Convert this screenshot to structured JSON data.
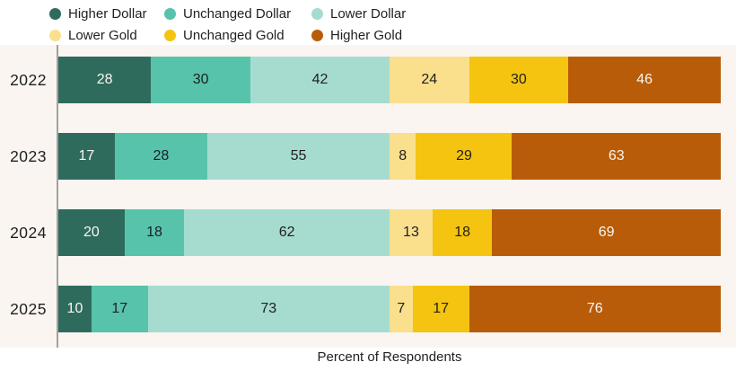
{
  "chart_data": {
    "type": "bar",
    "subtype": "horizontal-stacked",
    "categories": [
      "2022",
      "2023",
      "2024",
      "2025"
    ],
    "series": [
      {
        "name": "Higher Dollar",
        "color": "#2f6b5d",
        "label_color": "#faf6f0",
        "values": [
          28,
          17,
          20,
          10
        ]
      },
      {
        "name": "Unchanged Dollar",
        "color": "#57c3ab",
        "label_color": "#1f1f1f",
        "values": [
          30,
          28,
          18,
          17
        ]
      },
      {
        "name": "Lower Dollar",
        "color": "#a6dcd0",
        "label_color": "#1f1f1f",
        "values": [
          42,
          55,
          62,
          73
        ]
      },
      {
        "name": "Lower Gold",
        "color": "#fadf8d",
        "label_color": "#1f1f1f",
        "values": [
          24,
          8,
          13,
          7
        ]
      },
      {
        "name": "Unchanged Gold",
        "color": "#f4c411",
        "label_color": "#1f1f1f",
        "values": [
          30,
          29,
          18,
          17
        ]
      },
      {
        "name": "Higher Gold",
        "color": "#b85c09",
        "label_color": "#faf6f0",
        "values": [
          46,
          63,
          69,
          76
        ]
      }
    ],
    "row_total": 200,
    "xlabel": "Percent of Respondents",
    "legend_position": "top",
    "grid": false,
    "background_band_color": "#faf5f0",
    "axis_line_color": "#a3a19d"
  }
}
